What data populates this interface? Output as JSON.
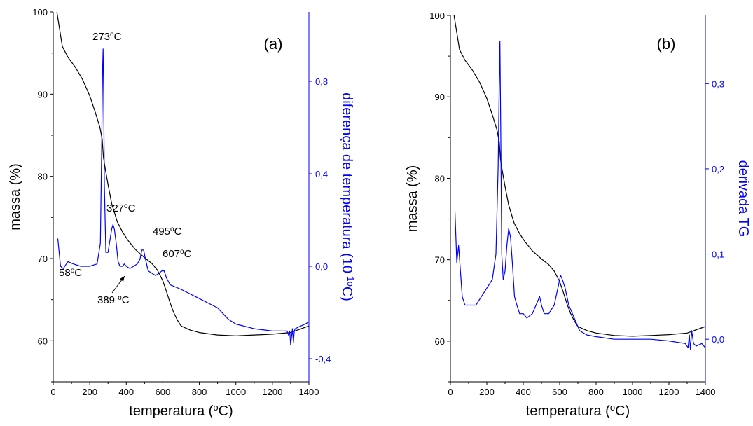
{
  "chart_data": [
    {
      "type": "line",
      "panel_label": "(a)",
      "xlabel": "temperatura (°C)",
      "ylabel_left": "massa (%)",
      "ylabel_right": "diferença  de  temperatura (10-1°C)",
      "xlim": [
        0,
        1400
      ],
      "ylim_left": [
        55,
        100
      ],
      "ylim_right": [
        -0.5,
        1.1
      ],
      "x_ticks": [
        0,
        200,
        400,
        600,
        800,
        1000,
        1200,
        1400
      ],
      "y_ticks_left": [
        60,
        70,
        80,
        90,
        100
      ],
      "y_ticks_right": [
        "-0,4",
        "0,0",
        "0,4",
        "0,8"
      ],
      "y_ticks_right_values": [
        -0.4,
        0.0,
        0.4,
        0.8
      ],
      "colors": {
        "left": "#000000",
        "right": "#0000ff"
      },
      "series": [
        {
          "axis": "left",
          "x": [
            20,
            50,
            80,
            120,
            160,
            200,
            230,
            255,
            268,
            275,
            285,
            300,
            320,
            350,
            380,
            410,
            450,
            500,
            540,
            570,
            600,
            620,
            640,
            660,
            680,
            700,
            750,
            800,
            900,
            1000,
            1100,
            1200,
            1300,
            1400
          ],
          "values": [
            100,
            95.8,
            94.5,
            93.3,
            91.8,
            89.8,
            87.8,
            86.0,
            84.5,
            82.3,
            80.9,
            79.0,
            76.7,
            74.5,
            73.2,
            72.2,
            71.1,
            70.1,
            69.4,
            68.6,
            67.3,
            66.0,
            64.6,
            63.4,
            62.5,
            61.8,
            61.3,
            61.0,
            60.7,
            60.6,
            60.7,
            60.8,
            61.0,
            61.8
          ]
        },
        {
          "axis": "right",
          "x": [
            25,
            40,
            55,
            80,
            110,
            150,
            200,
            240,
            258,
            265,
            270,
            273,
            276,
            280,
            288,
            300,
            310,
            320,
            327,
            335,
            345,
            355,
            365,
            380,
            389,
            400,
            420,
            440,
            460,
            475,
            485,
            495,
            505,
            520,
            540,
            560,
            580,
            595,
            607,
            620,
            640,
            700,
            800,
            900,
            960,
            1000,
            1100,
            1200,
            1280,
            1290,
            1295,
            1300,
            1310,
            1315,
            1320,
            1325,
            1350,
            1380,
            1400
          ],
          "values": [
            0.12,
            0.0,
            -0.01,
            0.02,
            0.01,
            0.0,
            0.0,
            0.01,
            0.1,
            0.5,
            0.84,
            0.94,
            0.75,
            0.35,
            0.06,
            0.06,
            0.11,
            0.16,
            0.18,
            0.16,
            0.1,
            0.02,
            0.0,
            0.0,
            0.01,
            0.0,
            -0.01,
            0.0,
            0.01,
            0.03,
            0.07,
            0.07,
            0.03,
            -0.02,
            -0.03,
            -0.04,
            -0.03,
            -0.02,
            -0.02,
            -0.05,
            -0.08,
            -0.1,
            -0.14,
            -0.18,
            -0.23,
            -0.25,
            -0.27,
            -0.28,
            -0.28,
            -0.3,
            -0.28,
            -0.34,
            -0.27,
            -0.33,
            -0.28,
            -0.27,
            -0.26,
            -0.25,
            -0.24
          ]
        }
      ],
      "annotations": [
        "273°C",
        "327°C",
        "495°C",
        "607°C",
        "58°C",
        "389 °C"
      ]
    },
    {
      "type": "line",
      "panel_label": "(b)",
      "xlabel": "temperatura (°C)",
      "ylabel_left": "massa (%)",
      "ylabel_right": "derivada TG",
      "xlim": [
        0,
        1400
      ],
      "ylim_left": [
        55,
        100
      ],
      "ylim_right": [
        -0.05,
        0.38
      ],
      "x_ticks": [
        0,
        200,
        400,
        600,
        800,
        1000,
        1200,
        1400
      ],
      "y_ticks_left": [
        60,
        70,
        80,
        90,
        100
      ],
      "y_ticks_right": [
        "0,0",
        "0,1",
        "0,2",
        "0,3"
      ],
      "y_ticks_right_values": [
        0.0,
        0.1,
        0.2,
        0.3
      ],
      "colors": {
        "left": "#000000",
        "right": "#0000ff"
      },
      "series": [
        {
          "axis": "left",
          "x": [
            20,
            50,
            80,
            120,
            160,
            200,
            230,
            255,
            268,
            275,
            285,
            300,
            320,
            350,
            380,
            410,
            450,
            500,
            540,
            570,
            600,
            620,
            640,
            660,
            680,
            700,
            750,
            800,
            900,
            1000,
            1100,
            1200,
            1300,
            1400
          ],
          "values": [
            100,
            95.8,
            94.5,
            93.3,
            91.8,
            89.8,
            87.8,
            86.0,
            84.5,
            82.3,
            80.9,
            79.0,
            76.7,
            74.5,
            73.2,
            72.2,
            71.1,
            70.1,
            69.4,
            68.6,
            67.3,
            66.0,
            64.6,
            63.4,
            62.5,
            61.8,
            61.3,
            61.0,
            60.7,
            60.6,
            60.7,
            60.8,
            61.0,
            61.8
          ]
        },
        {
          "axis": "right",
          "x": [
            25,
            35,
            45,
            55,
            65,
            80,
            100,
            120,
            140,
            170,
            200,
            230,
            250,
            262,
            268,
            272,
            276,
            282,
            290,
            300,
            310,
            320,
            330,
            340,
            352,
            365,
            380,
            400,
            420,
            450,
            470,
            490,
            500,
            515,
            540,
            570,
            590,
            605,
            615,
            630,
            650,
            670,
            690,
            710,
            750,
            800,
            900,
            1000,
            1100,
            1200,
            1290,
            1305,
            1312,
            1318,
            1325,
            1335,
            1350,
            1380,
            1400
          ],
          "values": [
            0.15,
            0.09,
            0.11,
            0.08,
            0.05,
            0.04,
            0.04,
            0.04,
            0.04,
            0.05,
            0.06,
            0.07,
            0.1,
            0.2,
            0.3,
            0.35,
            0.25,
            0.1,
            0.07,
            0.08,
            0.11,
            0.13,
            0.12,
            0.09,
            0.05,
            0.04,
            0.03,
            0.03,
            0.025,
            0.03,
            0.04,
            0.05,
            0.04,
            0.03,
            0.03,
            0.04,
            0.06,
            0.075,
            0.07,
            0.06,
            0.04,
            0.03,
            0.02,
            0.01,
            0.005,
            0.003,
            0.0,
            0.0,
            0.0,
            -0.002,
            -0.005,
            -0.01,
            0.005,
            -0.012,
            0.01,
            -0.005,
            -0.008,
            -0.005,
            -0.01
          ]
        }
      ],
      "annotations": []
    }
  ]
}
